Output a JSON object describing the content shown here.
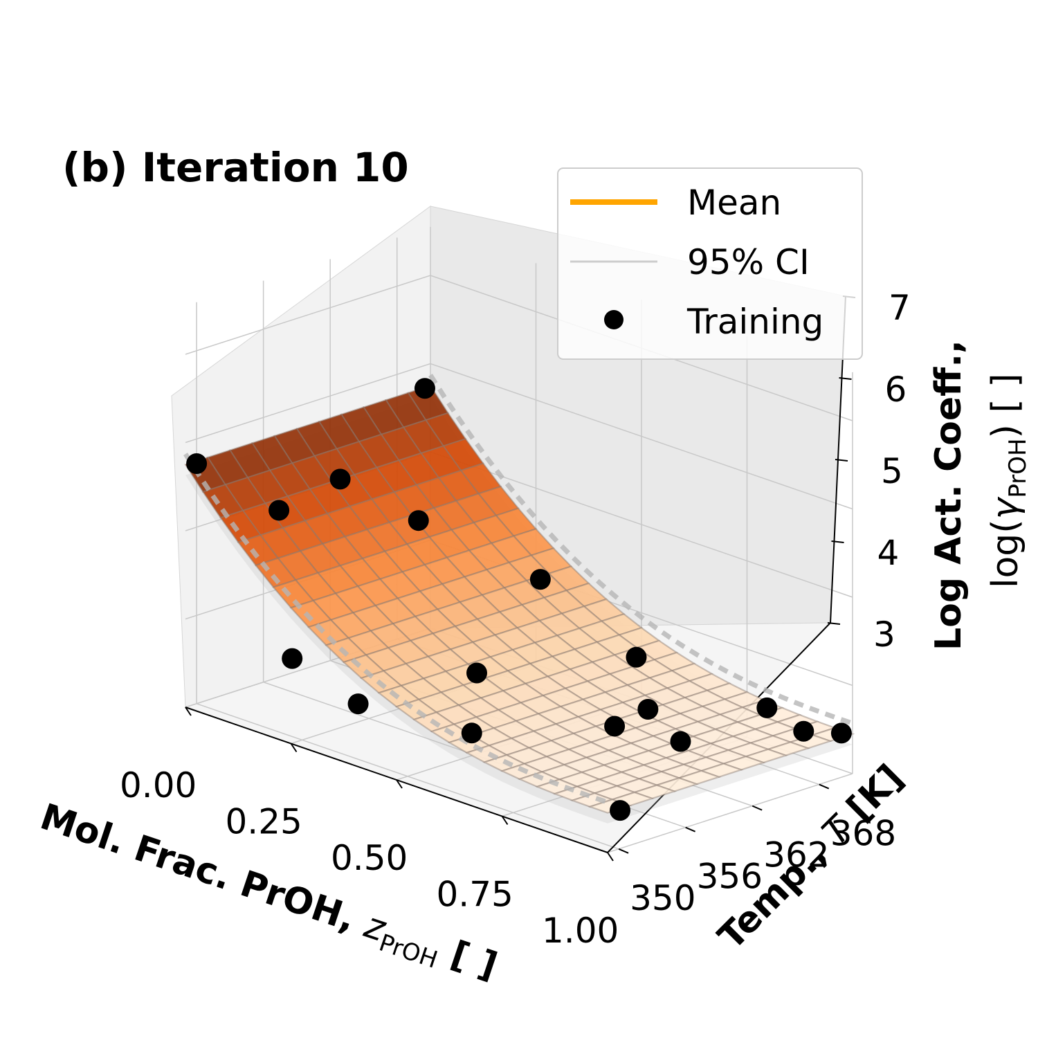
{
  "chart_data": {
    "type": "surface3d",
    "title": "(b) Iteration 10",
    "xlabel": {
      "main": "Mol. Frac. PrOH, ",
      "symbol": "z",
      "sub": "PrOH",
      "unit": " [ ]"
    },
    "ylabel": {
      "main": "Temp., ",
      "symbol": "T",
      "unit": " [K]"
    },
    "zlabel": {
      "line1": "Log Act. Coeff.,",
      "prefix": "log(",
      "symbol": "γ",
      "sub": "PrOH",
      "suffix": ") [ ]"
    },
    "x_ticks": [
      "0.00",
      "0.25",
      "0.50",
      "0.75",
      "1.00"
    ],
    "x_tick_values": [
      0,
      0.25,
      0.5,
      0.75,
      1.0
    ],
    "y_ticks": [
      "350",
      "356",
      "362",
      "368"
    ],
    "y_tick_values": [
      350,
      356,
      362,
      368
    ],
    "z_ticks": [
      "3",
      "4",
      "5",
      "6",
      "7"
    ],
    "z_tick_values": [
      3,
      4,
      5,
      6,
      7
    ],
    "xlim": [
      0,
      1
    ],
    "ylim": [
      349,
      371
    ],
    "zlim": [
      3,
      7
    ],
    "legend": {
      "position": "upper right",
      "entries": [
        {
          "label": "Mean",
          "style": "line",
          "color": "#ffa500"
        },
        {
          "label": "95% CI",
          "style": "line",
          "color": "#cccccc"
        },
        {
          "label": "Training",
          "style": "marker",
          "color": "#000000"
        }
      ]
    },
    "colormap": "Oranges",
    "surface_model": "log_gamma = 3.45 + 2.3 * (1 - z)^2.6",
    "training_points": [
      {
        "z": 0.0,
        "T": 350.0,
        "log_gamma": 5.72
      },
      {
        "z": 0.0,
        "T": 370.5,
        "log_gamma": 5.74
      },
      {
        "z": 0.05,
        "T": 355.5,
        "log_gamma": 5.05
      },
      {
        "z": 0.05,
        "T": 361.0,
        "log_gamma": 5.18
      },
      {
        "z": 0.13,
        "T": 365.0,
        "log_gamma": 4.68
      },
      {
        "z": 0.2,
        "T": 351.0,
        "log_gamma": 3.8
      },
      {
        "z": 0.3,
        "T": 369.5,
        "log_gamma": 4.11
      },
      {
        "z": 0.33,
        "T": 352.0,
        "log_gamma": 3.46
      },
      {
        "z": 0.4,
        "T": 360.0,
        "log_gamma": 3.6
      },
      {
        "z": 0.52,
        "T": 355.0,
        "log_gamma": 3.32
      },
      {
        "z": 0.58,
        "T": 367.5,
        "log_gamma": 3.77
      },
      {
        "z": 0.7,
        "T": 361.0,
        "log_gamma": 3.45
      },
      {
        "z": 0.7,
        "T": 364.0,
        "log_gamma": 3.52
      },
      {
        "z": 0.83,
        "T": 362.0,
        "log_gamma": 3.45
      },
      {
        "z": 0.85,
        "T": 369.0,
        "log_gamma": 3.58
      },
      {
        "z": 0.95,
        "T": 368.5,
        "log_gamma": 3.5
      },
      {
        "z": 0.99,
        "T": 350.5,
        "log_gamma": 3.4
      },
      {
        "z": 1.0,
        "T": 370.0,
        "log_gamma": 3.5
      }
    ]
  }
}
